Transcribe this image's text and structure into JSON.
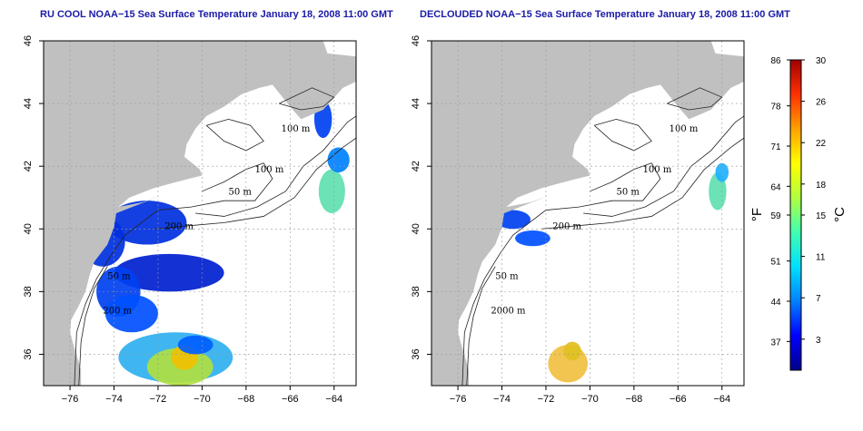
{
  "panels": [
    {
      "id": "raw",
      "title": "RU COOL NOAA−15 Sea Surface Temperature January 18, 2008 11:00 GMT"
    },
    {
      "id": "declouded",
      "title": "DECLOUDED NOAA−15 Sea Surface Temperature January 18, 2008 11:00 GMT"
    }
  ],
  "map_axes": {
    "lon_ticks": [
      "−76",
      "−74",
      "−72",
      "−70",
      "−68",
      "−66",
      "−64"
    ],
    "lat_ticks": [
      "36",
      "38",
      "40",
      "42",
      "44",
      "46"
    ],
    "lon_range": [
      -77.2,
      -63
    ],
    "lat_range": [
      35,
      46
    ]
  },
  "contour_labels": {
    "raw": [
      "100 m",
      "100 m",
      "50 m",
      "200 m",
      "50 m",
      "200 m"
    ],
    "declouded": [
      "100 m",
      "100 m",
      "50 m",
      "200 m",
      "50 m",
      "2000 m"
    ]
  },
  "colorbar": {
    "fahrenheit_label": "°F",
    "celsius_label": "°C",
    "fahrenheit_ticks": [
      "86",
      "78",
      "71",
      "64",
      "59",
      "51",
      "44",
      "37"
    ],
    "celsius_ticks": [
      "30",
      "26",
      "22",
      "18",
      "15",
      "11",
      "7",
      "3"
    ],
    "celsius_range": [
      0,
      30
    ],
    "colors": [
      "#00008b",
      "#0000ff",
      "#0080ff",
      "#00e0ff",
      "#40ffb0",
      "#b0ff40",
      "#ffff00",
      "#ffa000",
      "#ff3000",
      "#a00000"
    ]
  },
  "colors": {
    "land": "#c0c0c0",
    "ocean": "#ffffff",
    "title": "#1a1aa8"
  }
}
